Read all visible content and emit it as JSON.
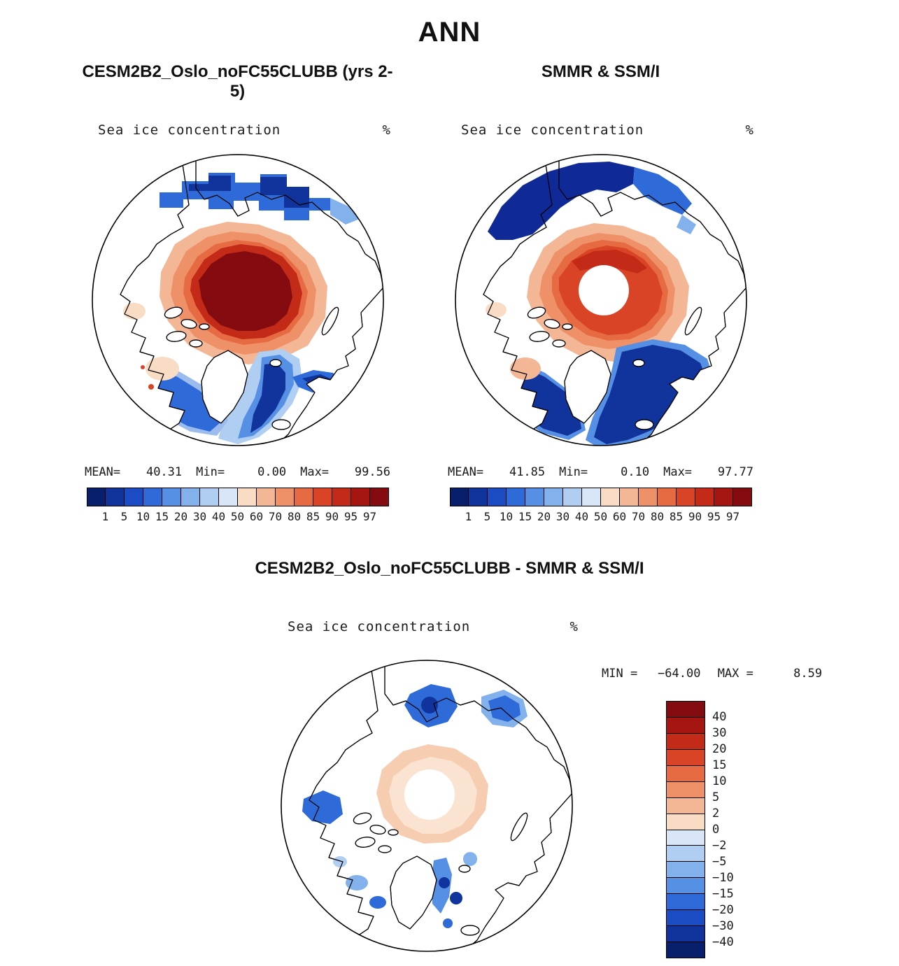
{
  "header": {
    "title": "ANN"
  },
  "panels": {
    "model": {
      "title": "CESM2B2_Oslo_noFC55CLUBB (yrs 2-5)",
      "field_label": "Sea ice concentration",
      "units": "%",
      "stats": {
        "mean_label": "MEAN=",
        "mean": "40.31",
        "min_label": "Min=",
        "min": "0.00",
        "max_label": "Max=",
        "max": "99.56"
      }
    },
    "obs": {
      "title": "SMMR & SSM/I",
      "field_label": "Sea ice concentration",
      "units": "%",
      "stats": {
        "mean_label": "MEAN=",
        "mean": "41.85",
        "min_label": "Min=",
        "min": "0.10",
        "max_label": "Max=",
        "max": "97.77"
      }
    },
    "diff": {
      "title": "CESM2B2_Oslo_noFC55CLUBB - SMMR & SSM/I",
      "field_label": "Sea ice concentration",
      "units": "%",
      "stats": {
        "min_label": "MIN =",
        "min": "−64.00",
        "max_label": "MAX =",
        "max": "8.59"
      }
    }
  },
  "concentration_colorbar": {
    "tick_labels": [
      "1",
      "5",
      "10",
      "15",
      "20",
      "30",
      "40",
      "50",
      "60",
      "70",
      "80",
      "85",
      "90",
      "95",
      "97"
    ],
    "colors": [
      "#081f6b",
      "#10339c",
      "#1b4cc3",
      "#2e6bd8",
      "#5590e4",
      "#82b1ec",
      "#b0cdf2",
      "#d8e6f8",
      "#f9dcc4",
      "#f4b795",
      "#ee9168",
      "#e66a42",
      "#d94426",
      "#c32a18",
      "#a51512",
      "#840b10"
    ]
  },
  "difference_colorbar": {
    "tick_labels": [
      "40",
      "30",
      "20",
      "15",
      "10",
      "5",
      "2",
      "0",
      "−2",
      "−5",
      "−10",
      "−15",
      "−20",
      "−30",
      "−40"
    ],
    "colors": [
      "#840b10",
      "#a51512",
      "#c32a18",
      "#d94426",
      "#e66a42",
      "#ee9168",
      "#f4b795",
      "#f9dcc4",
      "#d8e6f8",
      "#b0cdf2",
      "#82b1ec",
      "#5590e4",
      "#2e6bd8",
      "#1b4cc3",
      "#10339c",
      "#081f6b"
    ]
  },
  "chart_data": [
    {
      "type": "heatmap",
      "subtype": "north-polar-stereographic-map",
      "season": "ANN",
      "title": "CESM2B2_Oslo_noFC55CLUBB (yrs 2-5)",
      "variable": "Sea ice concentration",
      "units": "%",
      "region": "Arctic",
      "stats": {
        "mean": 40.31,
        "min": 0.0,
        "max": 99.56
      },
      "contour_levels": [
        1,
        5,
        10,
        15,
        20,
        30,
        40,
        50,
        60,
        70,
        80,
        85,
        90,
        95,
        97
      ],
      "palette": "16-color blue-to-red diverging",
      "legend_position": "bottom",
      "pole_hole": false
    },
    {
      "type": "heatmap",
      "subtype": "north-polar-stereographic-map",
      "season": "ANN",
      "title": "SMMR & SSM/I",
      "variable": "Sea ice concentration",
      "units": "%",
      "region": "Arctic",
      "stats": {
        "mean": 41.85,
        "min": 0.1,
        "max": 97.77
      },
      "contour_levels": [
        1,
        5,
        10,
        15,
        20,
        30,
        40,
        50,
        60,
        70,
        80,
        85,
        90,
        95,
        97
      ],
      "palette": "16-color blue-to-red diverging",
      "legend_position": "bottom",
      "pole_hole": true
    },
    {
      "type": "heatmap",
      "subtype": "north-polar-stereographic-map",
      "season": "ANN",
      "title": "CESM2B2_Oslo_noFC55CLUBB - SMMR & SSM/I",
      "variable": "Sea ice concentration difference",
      "units": "%",
      "region": "Arctic",
      "stats": {
        "min": -64.0,
        "max": 8.59
      },
      "contour_levels": [
        -40,
        -30,
        -20,
        -15,
        -10,
        -5,
        -2,
        0,
        2,
        5,
        10,
        15,
        20,
        30,
        40
      ],
      "palette": "16-color red-to-blue diverging (red = model higher)",
      "legend_position": "right",
      "pole_hole": true
    }
  ]
}
